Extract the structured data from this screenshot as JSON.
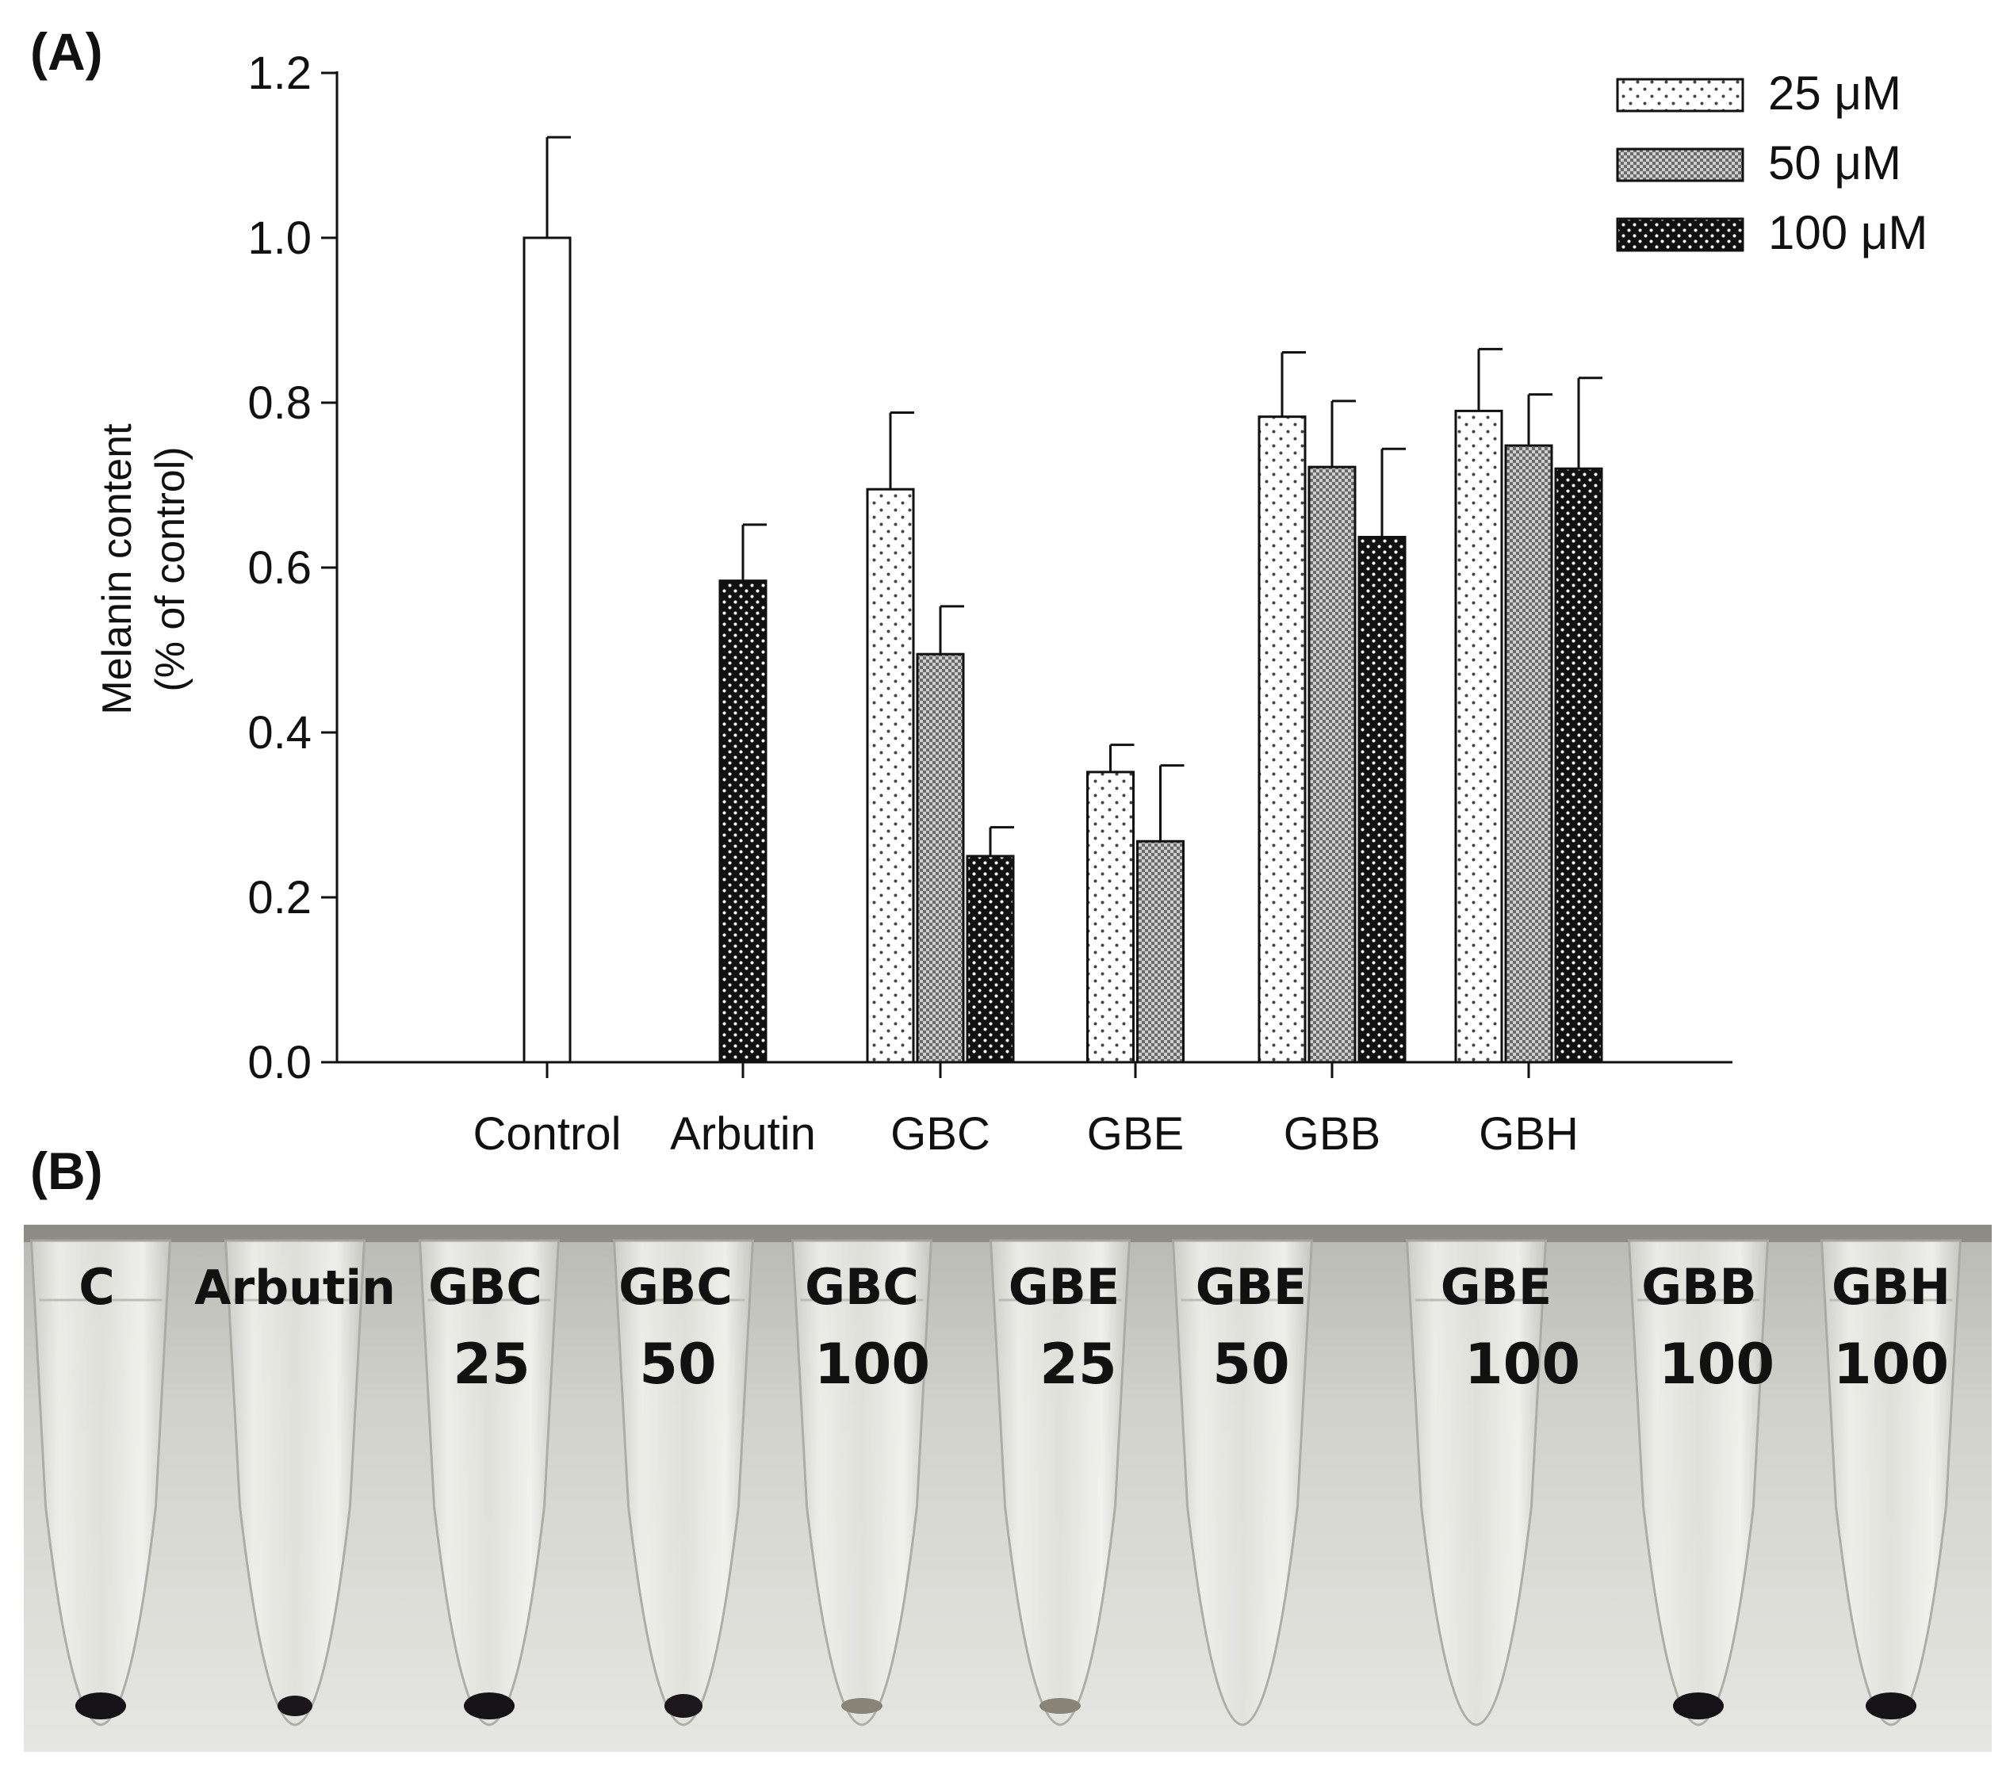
{
  "panel_a_label": "(A)",
  "panel_b_label": "(B)",
  "chart_data": {
    "type": "bar",
    "title": "",
    "xlabel": "",
    "ylabel": [
      "Melanin content",
      "(% of control)"
    ],
    "ylim": [
      0,
      1.2
    ],
    "yticks": [
      "0.0",
      "0.2",
      "0.4",
      "0.6",
      "0.8",
      "1.0",
      "1.2"
    ],
    "grid": false,
    "legend_position": "top-right",
    "categories": [
      "Control",
      "Arbutin",
      "GBC",
      "GBE",
      "GBB",
      "GBH"
    ],
    "series": [
      {
        "name": "25 μM",
        "pattern": "sparse-dots",
        "values": [
          null,
          null,
          0.695,
          0.352,
          0.783,
          0.79
        ],
        "errors": [
          null,
          null,
          0.093,
          0.033,
          0.078,
          0.075
        ]
      },
      {
        "name": "50 μM",
        "pattern": "checker",
        "values": [
          null,
          null,
          0.495,
          0.268,
          0.722,
          0.748
        ],
        "errors": [
          null,
          null,
          0.058,
          0.092,
          0.08,
          0.062
        ]
      },
      {
        "name": "100 μM",
        "pattern": "dense-dark",
        "values": [
          null,
          0.584,
          0.25,
          null,
          0.637,
          0.72
        ],
        "errors": [
          null,
          0.068,
          0.035,
          null,
          0.107,
          0.11
        ]
      }
    ],
    "control": {
      "name": "Control",
      "pattern": "white",
      "value": 1.0,
      "error": 0.122
    }
  },
  "photo": {
    "tubes": [
      {
        "line1": "C",
        "line2": "",
        "pellet": "dark-large"
      },
      {
        "line1": "Arbutin",
        "line2": "",
        "pellet": "dark-small"
      },
      {
        "line1": "GBC",
        "line2": "25",
        "pellet": "dark-large"
      },
      {
        "line1": "GBC",
        "line2": "50",
        "pellet": "dark-medium"
      },
      {
        "line1": "GBC",
        "line2": "100",
        "pellet": "faint"
      },
      {
        "line1": "GBE",
        "line2": "25",
        "pellet": "faint"
      },
      {
        "line1": "GBE",
        "line2": "50",
        "pellet": "none"
      },
      {
        "line1": "GBE",
        "line2": "100",
        "pellet": "none"
      },
      {
        "line1": "GBB",
        "line2": "100",
        "pellet": "dark-large"
      },
      {
        "line1": "GBH",
        "line2": "100",
        "pellet": "dark-large"
      }
    ]
  }
}
